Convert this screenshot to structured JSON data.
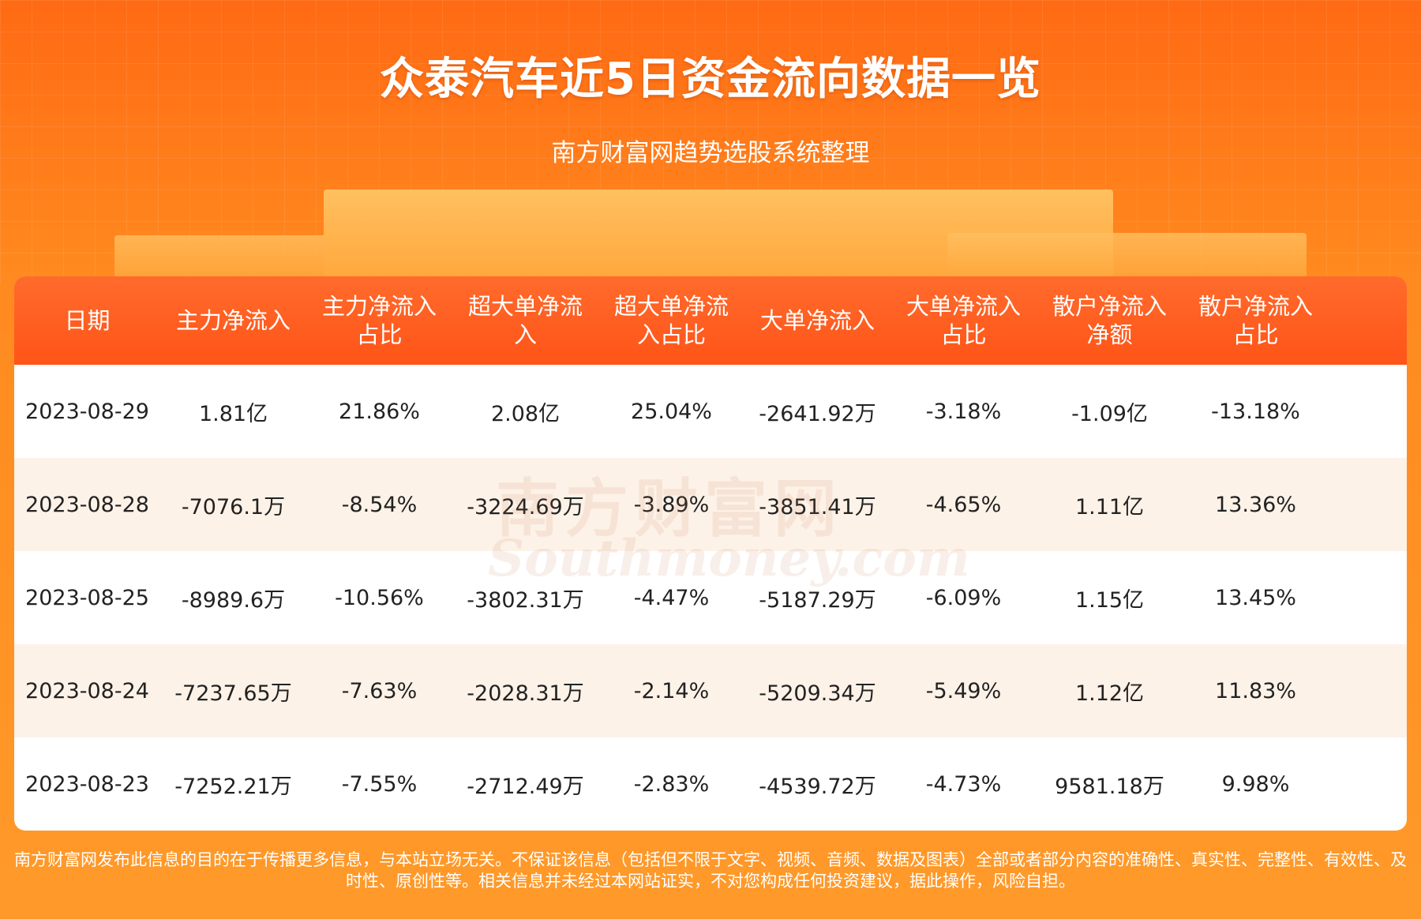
{
  "header": {
    "title": "众泰汽车近5日资金流向数据一览",
    "subtitle": "南方财富网趋势选股系统整理"
  },
  "watermark": {
    "cn": "南方财富网",
    "en": "Southmoney.com"
  },
  "table": {
    "columns": [
      "日期",
      "主力净流入",
      "主力净流入占比",
      "超大单净流入",
      "超大单净流入占比",
      "大单净流入",
      "大单净流入占比",
      "散户净流入净额",
      "散户净流入占比"
    ],
    "rows": [
      [
        "2023-08-29",
        "1.81亿",
        "21.86%",
        "2.08亿",
        "25.04%",
        "-2641.92万",
        "-3.18%",
        "-1.09亿",
        "-13.18%"
      ],
      [
        "2023-08-28",
        "-7076.1万",
        "-8.54%",
        "-3224.69万",
        "-3.89%",
        "-3851.41万",
        "-4.65%",
        "1.11亿",
        "13.36%"
      ],
      [
        "2023-08-25",
        "-8989.6万",
        "-10.56%",
        "-3802.31万",
        "-4.47%",
        "-5187.29万",
        "-6.09%",
        "1.15亿",
        "13.45%"
      ],
      [
        "2023-08-24",
        "-7237.65万",
        "-7.63%",
        "-2028.31万",
        "-2.14%",
        "-5209.34万",
        "-5.49%",
        "1.12亿",
        "11.83%"
      ],
      [
        "2023-08-23",
        "-7252.21万",
        "-7.55%",
        "-2712.49万",
        "-2.83%",
        "-4539.72万",
        "-4.73%",
        "9581.18万",
        "9.98%"
      ]
    ]
  },
  "footer": {
    "disclaimer": "南方财富网发布此信息的目的在于传播更多信息，与本站立场无关。不保证该信息（包括但不限于文字、视频、音频、数据及图表）全部或者部分内容的准确性、真实性、完整性、有效性、及时性、原创性等。相关信息并未经过本网站证实，不对您构成任何投资建议，据此操作，风险自担。"
  }
}
